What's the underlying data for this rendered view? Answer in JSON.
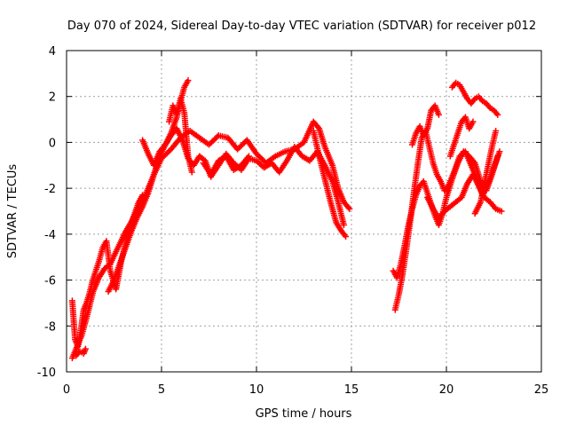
{
  "chart_data": {
    "type": "scatter",
    "title": "Day 070 of 2024, Sidereal Day-to-day VTEC variation (SDTVAR) for receiver p012",
    "xlabel": "GPS time / hours",
    "ylabel": "SDTVAR / TECUs",
    "xlim": [
      0,
      25
    ],
    "ylim": [
      -10,
      4
    ],
    "xticks": [
      "0",
      "5",
      "10",
      "15",
      "20",
      "25"
    ],
    "yticks": [
      "-10",
      "-8",
      "-6",
      "-4",
      "-2",
      "0",
      "2",
      "4"
    ],
    "grid": true,
    "marker": "+",
    "color": "#ff0000",
    "series": [
      {
        "segments": [
          {
            "x": [
              0.3,
              0.5,
              0.8,
              1.1,
              1.4,
              1.7,
              2.0,
              2.3,
              2.7,
              3.1,
              3.6,
              4.1,
              4.6,
              5.0,
              5.5,
              6.0,
              6.5,
              7.0,
              7.5,
              8.0,
              8.5,
              9.0,
              9.5,
              10.0,
              10.5,
              11.0,
              11.5,
              12.0,
              12.5,
              13.0,
              13.3,
              13.6,
              14.0,
              14.3,
              14.6,
              14.9
            ],
            "y": [
              -9.4,
              -9.0,
              -8.4,
              -7.5,
              -6.5,
              -5.9,
              -5.5,
              -5.3,
              -4.6,
              -3.9,
              -3.2,
              -2.4,
              -1.4,
              -0.7,
              -0.3,
              0.2,
              0.5,
              0.2,
              -0.1,
              0.3,
              0.2,
              -0.3,
              0.1,
              -0.5,
              -0.9,
              -0.6,
              -0.4,
              -0.3,
              0.0,
              0.9,
              0.6,
              -0.2,
              -1.0,
              -2.0,
              -2.6,
              -2.9
            ]
          },
          {
            "x": [
              2.2,
              2.5,
              2.8,
              3.1,
              3.4,
              3.7,
              4.0,
              4.3,
              4.6,
              4.9,
              5.2,
              5.5,
              5.8,
              6.1,
              6.4,
              6.7,
              7.0,
              7.3,
              7.6,
              8.0,
              8.4,
              8.8,
              9.2,
              9.6,
              10.0,
              10.4,
              10.8,
              11.2,
              11.6,
              12.0,
              12.4,
              12.8,
              13.2,
              13.6,
              14.0,
              14.3,
              14.6
            ],
            "y": [
              -6.5,
              -6.0,
              -5.3,
              -4.6,
              -3.9,
              -3.3,
              -2.8,
              -2.2,
              -1.4,
              -0.6,
              -0.1,
              0.3,
              0.6,
              0.1,
              -0.7,
              -1.0,
              -0.6,
              -0.8,
              -1.5,
              -1.0,
              -0.5,
              -0.9,
              -1.2,
              -0.7,
              -0.8,
              -1.1,
              -0.9,
              -1.3,
              -0.8,
              -0.2,
              -0.6,
              -0.8,
              -0.4,
              -1.0,
              -1.7,
              -2.6,
              -3.6
            ]
          },
          {
            "x": [
              0.3,
              0.45,
              0.6,
              0.75,
              0.9,
              1.05,
              1.2,
              1.35,
              1.5,
              1.7,
              1.9,
              2.1,
              2.3,
              2.6,
              2.9,
              3.2,
              3.5,
              3.8,
              4.0
            ],
            "y": [
              -6.9,
              -8.6,
              -8.9,
              -8.2,
              -7.3,
              -7.0,
              -6.6,
              -6.1,
              -5.7,
              -5.2,
              -4.6,
              -4.3,
              -5.6,
              -6.4,
              -5.1,
              -4.1,
              -3.3,
              -2.6,
              -2.3
            ]
          },
          {
            "x": [
              0.5,
              0.7,
              0.9,
              1.0
            ],
            "y": [
              -9.3,
              -9.1,
              -9.2,
              -9.0
            ]
          },
          {
            "x": [
              4.0,
              4.3,
              4.6,
              4.9,
              5.2,
              5.5,
              5.8,
              6.0,
              6.2,
              6.4
            ],
            "y": [
              0.1,
              -0.5,
              -1.0,
              -0.4,
              -0.1,
              0.4,
              1.1,
              1.8,
              2.4,
              2.7
            ]
          },
          {
            "x": [
              5.4,
              5.6,
              5.8,
              6.0,
              6.2,
              6.4,
              6.6
            ],
            "y": [
              0.9,
              1.6,
              1.2,
              1.9,
              1.3,
              -0.6,
              -1.3
            ]
          },
          {
            "x": [
              7.2,
              7.6,
              8.0,
              8.4,
              8.8,
              9.2,
              9.6
            ],
            "y": [
              -0.9,
              -1.4,
              -0.8,
              -0.6,
              -1.2,
              -1.0,
              -0.6
            ]
          },
          {
            "x": [
              13.0,
              13.3,
              13.6,
              13.9,
              14.2,
              14.5,
              14.7
            ],
            "y": [
              0.5,
              -0.6,
              -1.6,
              -2.6,
              -3.5,
              -3.9,
              -4.1
            ]
          },
          {
            "x": [
              17.2,
              17.4,
              17.6,
              17.8,
              18.0,
              18.2,
              18.4,
              18.6,
              18.8,
              19.0,
              19.2,
              19.4,
              19.6,
              19.8,
              20.0,
              20.3,
              20.6,
              20.9,
              21.2,
              21.5,
              21.8,
              22.1,
              22.4,
              22.7
            ],
            "y": [
              -5.6,
              -5.9,
              -5.3,
              -4.5,
              -3.6,
              -2.9,
              -2.3,
              -1.9,
              -1.7,
              -2.2,
              -2.7,
              -3.2,
              -3.6,
              -3.1,
              -2.4,
              -1.6,
              -0.9,
              -0.4,
              -0.6,
              -0.9,
              -1.7,
              -2.1,
              -1.4,
              -0.6
            ]
          },
          {
            "x": [
              17.3,
              17.5,
              17.7,
              17.9,
              18.1,
              18.3,
              18.5,
              18.7,
              18.9,
              19.1,
              19.3,
              19.5,
              19.7,
              19.9,
              20.1,
              20.4,
              20.7,
              21.0,
              21.3,
              21.6,
              21.9,
              22.2,
              22.5,
              22.8
            ],
            "y": [
              -7.3,
              -6.6,
              -5.7,
              -4.6,
              -3.4,
              -2.1,
              -0.9,
              0.2,
              0.5,
              -0.2,
              -0.9,
              -1.4,
              -1.7,
              -2.1,
              -1.9,
              -1.3,
              -0.6,
              -0.4,
              -1.0,
              -1.6,
              -2.3,
              -1.8,
              -1.1,
              -0.4
            ]
          },
          {
            "x": [
              18.2,
              18.4,
              18.6,
              18.8,
              19.0,
              19.2,
              19.4,
              19.6
            ],
            "y": [
              -0.1,
              0.4,
              0.7,
              0.3,
              0.6,
              1.4,
              1.6,
              1.2
            ]
          },
          {
            "x": [
              20.3,
              20.5,
              20.7,
              20.9,
              21.1,
              21.3,
              21.5,
              21.7,
              21.9,
              22.1,
              22.3,
              22.5,
              22.7
            ],
            "y": [
              2.4,
              2.6,
              2.5,
              2.2,
              1.9,
              1.7,
              1.9,
              2.0,
              1.8,
              1.7,
              1.5,
              1.4,
              1.2
            ]
          },
          {
            "x": [
              19.0,
              19.3,
              19.6,
              19.9,
              20.2,
              20.5,
              20.8,
              21.1,
              21.4,
              21.7,
              22.0,
              22.3,
              22.6,
              22.9
            ],
            "y": [
              -2.4,
              -2.9,
              -3.3,
              -3.0,
              -2.8,
              -2.6,
              -2.4,
              -1.8,
              -1.4,
              -1.9,
              -2.4,
              -2.6,
              -2.9,
              -3.0
            ]
          },
          {
            "x": [
              20.2,
              20.4,
              20.6,
              20.8,
              21.0,
              21.2,
              21.4
            ],
            "y": [
              -0.6,
              -0.1,
              0.4,
              0.9,
              1.1,
              0.6,
              0.9
            ]
          },
          {
            "x": [
              21.5,
              21.8,
              22.1,
              22.4,
              22.6
            ],
            "y": [
              -3.1,
              -2.6,
              -1.4,
              -0.2,
              0.5
            ]
          }
        ]
      }
    ]
  }
}
